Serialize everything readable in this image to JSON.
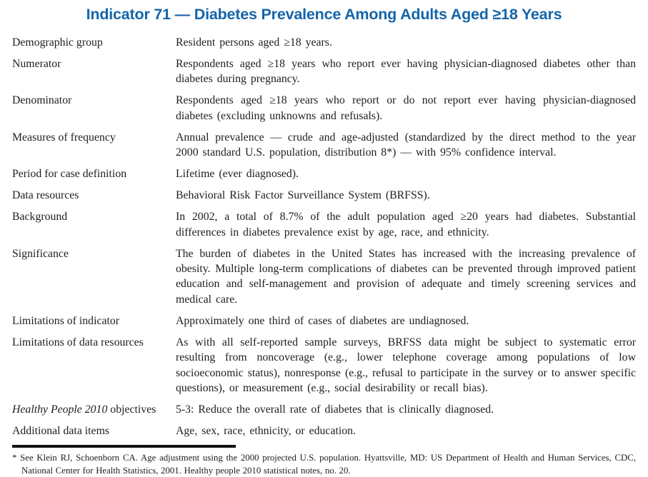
{
  "title": "Indicator 71 — Diabetes Prevalence Among Adults Aged ≥18 Years",
  "colors": {
    "title_blue": "#1565A9",
    "body_text": "#1e1e1e",
    "rule_black": "#111111",
    "background": "#ffffff"
  },
  "rows": [
    {
      "label": "Demographic group",
      "value": "Resident persons aged ≥18 years."
    },
    {
      "label": "Numerator",
      "value": "Respondents aged ≥18 years who report ever having physician-diagnosed diabetes other than diabetes during pregnancy."
    },
    {
      "label": "Denominator",
      "value": "Respondents aged ≥18 years who report or do not report ever having physician-diagnosed diabetes (excluding unknowns and refusals)."
    },
    {
      "label": "Measures of frequency",
      "value": "Annual prevalence — crude and age-adjusted (standardized by the direct method to the year 2000 standard U.S. population, distribution 8*) — with 95% confidence interval."
    },
    {
      "label": "Period for case definition",
      "value": "Lifetime (ever diagnosed)."
    },
    {
      "label": "Data resources",
      "value": "Behavioral Risk Factor Surveillance System (BRFSS)."
    },
    {
      "label": "Background",
      "value": "In 2002, a total of 8.7% of the adult population aged ≥20 years had diabetes. Substantial differences in diabetes prevalence exist by age, race, and ethnicity."
    },
    {
      "label": "Significance",
      "value": "The burden of diabetes in the United States has increased with the increasing prevalence of obesity. Multiple long-term complications of diabetes can be prevented through improved patient education and self-management and provision of adequate and timely screening services and medical care."
    },
    {
      "label": "Limitations of indicator",
      "value": "Approximately one third of cases of diabetes are undiagnosed."
    },
    {
      "label": "Limitations of data resources",
      "value": "As with all self-reported sample surveys, BRFSS data might be subject to systematic error resulting from noncoverage (e.g., lower telephone coverage among populations of low socioeconomic status), nonresponse (e.g., refusal to participate in the survey or to answer specific questions), or measurement (e.g., social desirability or recall bias)."
    },
    {
      "label_italic": "Healthy People 2010",
      "label": " objectives",
      "value": "5-3: Reduce the overall rate of diabetes that is clinically diagnosed."
    },
    {
      "label": "Additional data items",
      "value": "Age, sex, race, ethnicity, or education."
    }
  ],
  "footnote": {
    "text": "* See Klein RJ, Schoenborn CA. Age adjustment using the 2000 projected U.S. population. Hyattsville, MD: US Department of Health and Human Services, CDC, National Center for Health Statistics, 2001. Healthy people 2010 statistical notes, no. 20."
  }
}
